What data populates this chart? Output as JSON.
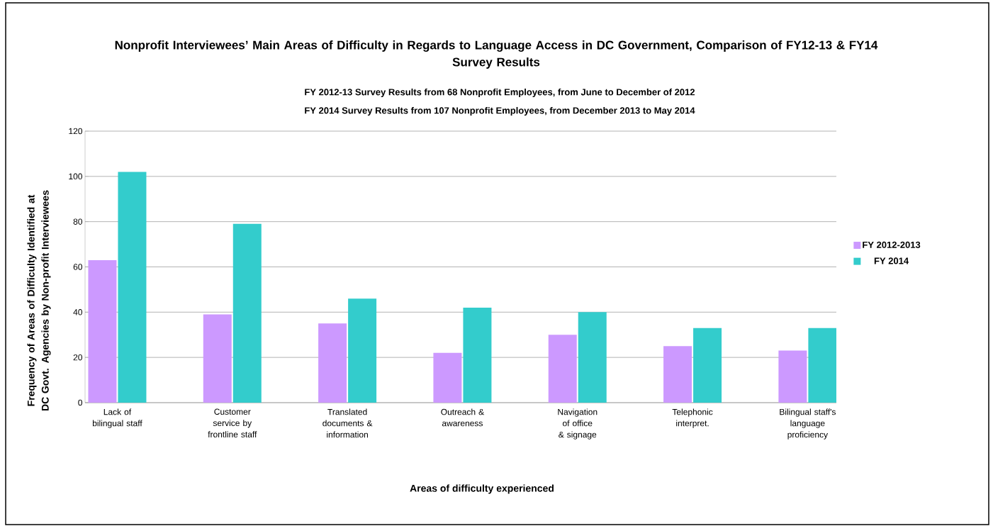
{
  "chart_data": {
    "type": "bar",
    "title": "Nonprofit Interviewees’ Main Areas of Difficulty in Regards to Language Access in DC Government, Comparison of FY12-13 & FY14 Survey Results",
    "subtitle": "FY 2012-13 Survey Results from 68 Nonprofit Employees, from June to December of 2012",
    "annotations": [
      "FY 2014 Survey Results from 107 Nonprofit Employees, from December 2013 to May 2014"
    ],
    "xlabel": "Areas of difficulty experienced",
    "ylabel": "Frequency of Areas of Difficulty Identified at DC Govt. Agencies by Non-profit Interviewees",
    "categories": [
      "Lack of bilingual staff",
      "Customer service by frontline staff",
      "Translated documents & information",
      "Outreach & awareness",
      "Navigation of office & signage",
      "Telephonic interpret.",
      "Bilingual staff's language proficiency"
    ],
    "series": [
      {
        "name": "FY 2012-2013",
        "color": "#cc99ff",
        "values": [
          63,
          39,
          35,
          22,
          30,
          25,
          23
        ]
      },
      {
        "name": "FY 2014",
        "color": "#33cccc",
        "values": [
          102,
          79,
          46,
          42,
          40,
          33,
          33
        ]
      }
    ],
    "ylim": [
      0,
      120
    ],
    "yticks": [
      0,
      20,
      40,
      60,
      80,
      100,
      120
    ],
    "grid": "y",
    "legend": "right"
  }
}
